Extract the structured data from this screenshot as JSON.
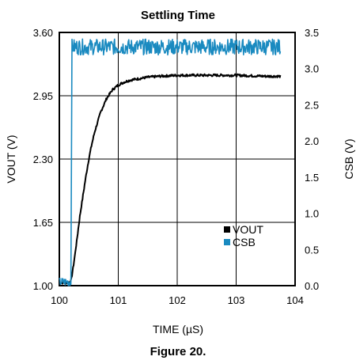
{
  "caption": "Figure 20.",
  "colors": {
    "vout": "#000000",
    "csb": "#1a8ac0",
    "grid": "#000000"
  },
  "chart_data": {
    "type": "line",
    "title": "Settling Time",
    "xlabel": "TIME (µS)",
    "ylabel_left": "VOUT (V)",
    "ylabel_right": "CSB (V)",
    "xlim": [
      100,
      104
    ],
    "ylim_left": [
      1.0,
      3.6
    ],
    "ylim_right": [
      0.0,
      3.5
    ],
    "x_ticks": [
      100,
      101,
      102,
      103,
      104
    ],
    "x_tick_labels": [
      "100",
      "101",
      "102",
      "103",
      "104"
    ],
    "y_left_ticks": [
      1.0,
      1.65,
      2.3,
      2.95,
      3.6
    ],
    "y_left_tick_labels": [
      "1.00",
      "1.65",
      "2.30",
      "2.95",
      "3.60"
    ],
    "y_right_ticks": [
      0.0,
      0.5,
      1.0,
      1.5,
      2.0,
      2.5,
      3.0,
      3.5
    ],
    "y_right_tick_labels": [
      "0.0",
      "0.5",
      "1.0",
      "1.5",
      "2.0",
      "2.5",
      "3.0",
      "3.5"
    ],
    "grid": true,
    "legend_position": "lower-right",
    "series": [
      {
        "name": "VOUT",
        "axis": "left",
        "x": [
          100.0,
          100.15,
          100.2,
          100.25,
          100.3,
          100.35,
          100.4,
          100.45,
          100.5,
          100.55,
          100.6,
          100.7,
          100.8,
          100.9,
          101.0,
          101.1,
          101.2,
          101.3,
          101.4,
          101.5,
          101.7,
          102.0,
          102.5,
          103.0,
          103.5,
          103.75
        ],
        "values": [
          1.03,
          1.03,
          1.05,
          1.25,
          1.48,
          1.72,
          1.92,
          2.12,
          2.3,
          2.45,
          2.58,
          2.78,
          2.92,
          3.01,
          3.06,
          3.09,
          3.11,
          3.12,
          3.13,
          3.14,
          3.15,
          3.16,
          3.16,
          3.16,
          3.15,
          3.15
        ]
      },
      {
        "name": "CSB",
        "axis": "right",
        "x": [
          100.0,
          100.2,
          100.21,
          100.25,
          100.5,
          101.0,
          101.5,
          102.0,
          102.5,
          103.0,
          103.5,
          103.75
        ],
        "values": [
          0.05,
          0.05,
          3.3,
          3.3,
          3.3,
          3.3,
          3.3,
          3.3,
          3.3,
          3.3,
          3.3,
          3.3
        ]
      }
    ]
  }
}
